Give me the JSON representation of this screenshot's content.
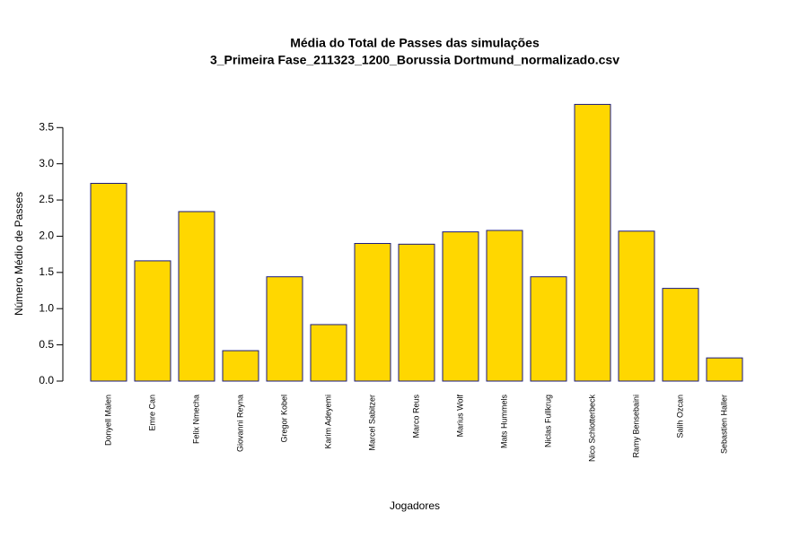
{
  "chart_data": {
    "type": "bar",
    "title": "Média do Total de Passes das simulações",
    "subtitle": "3_Primeira Fase_211323_1200_Borussia Dortmund_normalizado.csv",
    "x_label": "Jogadores",
    "y_label": "Número Médio de Passes",
    "categories": [
      "Donyell Malen",
      "Emre Can",
      "Felix Nmecha",
      "Giovanni Reyna",
      "Gregor Kobel",
      "Karim Adeyemi",
      "Marcel Sabitzer",
      "Marco Reus",
      "Marius Wolf",
      "Mats Hummels",
      "Niclas Fullkrug",
      "Nico Schlotterbeck",
      "Ramy Bensebaini",
      "Salih Ozcan",
      "Sebastien Haller"
    ],
    "values": [
      2.73,
      1.66,
      2.34,
      0.42,
      1.44,
      0.78,
      1.9,
      1.89,
      2.06,
      2.08,
      1.44,
      3.82,
      2.07,
      1.28,
      0.32
    ],
    "color": "#FFD700",
    "border_color": "#1a1a80",
    "ylim": [
      0,
      3.85
    ],
    "yticks": [
      {
        "value": 0,
        "label": "0.0"
      },
      {
        "value": 0.5,
        "label": "0.5"
      },
      {
        "value": 1,
        "label": "1.0"
      },
      {
        "value": 1.5,
        "label": "1.5"
      },
      {
        "value": 2,
        "label": "2.0"
      },
      {
        "value": 2.5,
        "label": "2.5"
      },
      {
        "value": 3,
        "label": "3.0"
      },
      {
        "value": 3.5,
        "label": "3.5"
      }
    ],
    "grid": false
  }
}
